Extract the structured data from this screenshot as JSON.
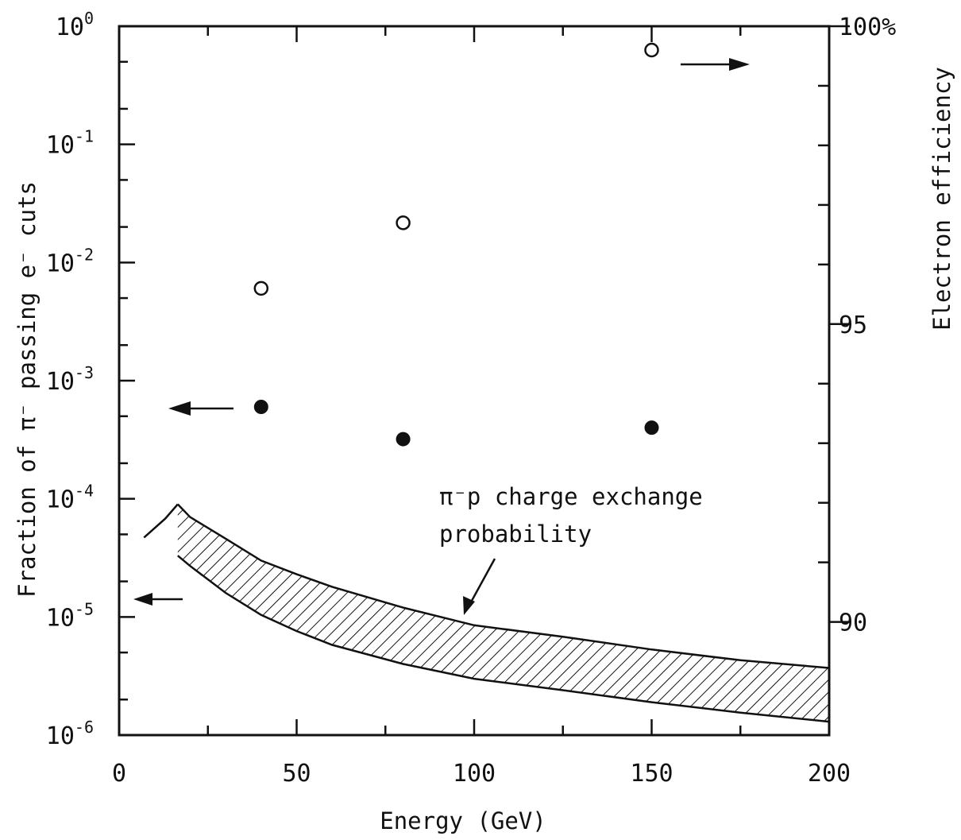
{
  "chart_data": {
    "type": "scatter",
    "title": "",
    "xlabel": "Energy (GeV)",
    "ylabel_left": "Fraction of π⁻ passing e⁻ cuts",
    "ylabel_right": "Electron efficiency",
    "xlim": [
      0,
      200
    ],
    "ylim_left": [
      1e-06,
      1
    ],
    "ylim_left_scale": "log",
    "ylim_right": [
      88.1,
      100
    ],
    "x_ticks": [
      {
        "value": 0,
        "label": "0"
      },
      {
        "value": 50,
        "label": "50"
      },
      {
        "value": 100,
        "label": "100"
      },
      {
        "value": 150,
        "label": "150"
      },
      {
        "value": 200,
        "label": "200"
      }
    ],
    "y_left_ticks": [
      {
        "value": 1,
        "base": "10",
        "exp": "0"
      },
      {
        "value": 0.1,
        "base": "10",
        "exp": "-1"
      },
      {
        "value": 0.01,
        "base": "10",
        "exp": "-2"
      },
      {
        "value": 0.001,
        "base": "10",
        "exp": "-3"
      },
      {
        "value": 0.0001,
        "base": "10",
        "exp": "-4"
      },
      {
        "value": 1e-05,
        "base": "10",
        "exp": "-5"
      },
      {
        "value": 1e-06,
        "base": "10",
        "exp": "-6"
      }
    ],
    "y_right_ticks": [
      {
        "value": 100,
        "label": "100%"
      },
      {
        "value": 95,
        "label": "95"
      },
      {
        "value": 90,
        "label": "90"
      }
    ],
    "series": [
      {
        "marker": "open-circle",
        "axis": "right",
        "x": [
          40,
          80,
          150
        ],
        "y": [
          95.6,
          96.7,
          99.6
        ]
      },
      {
        "marker": "filled-circle",
        "axis": "left",
        "x": [
          40,
          80,
          150
        ],
        "y": [
          0.0006,
          0.00032,
          0.0004
        ]
      }
    ],
    "band": {
      "axis": "left",
      "fill": "hatched",
      "upper": {
        "x": [
          16.5,
          20,
          30,
          40,
          50,
          60,
          80,
          100,
          125,
          150,
          175,
          200
        ],
        "y": [
          9e-05,
          7e-05,
          4.6e-05,
          3e-05,
          2.3e-05,
          1.8e-05,
          1.2e-05,
          8.5e-06,
          6.8e-06,
          5.3e-06,
          4.3e-06,
          3.7e-06
        ]
      },
      "lower": {
        "x": [
          16.5,
          20,
          30,
          40,
          50,
          60,
          80,
          100,
          125,
          150,
          175,
          200
        ],
        "y": [
          3.3e-05,
          2.7e-05,
          1.6e-05,
          1.04e-05,
          7.6e-06,
          5.8e-06,
          4e-06,
          3e-06,
          2.4e-06,
          1.9e-06,
          1.55e-06,
          1.3e-06
        ]
      },
      "extension": {
        "x": [
          7,
          13,
          16.5
        ],
        "y": [
          4.7e-05,
          6.8e-05,
          9e-05
        ]
      }
    },
    "annotation": {
      "line1": "π⁻p charge exchange",
      "line2": "probability"
    },
    "grid": false,
    "legend": "none"
  }
}
